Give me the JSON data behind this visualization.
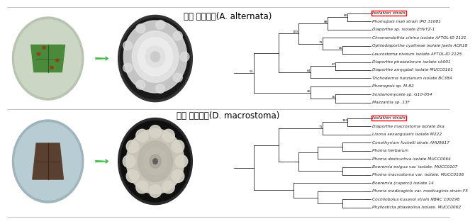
{
  "title1": "수국 잎반점병(A. alternata)",
  "title2": "수국 잎마름병(D. macrostoma)",
  "title1_italic": "A. alternata",
  "title2_italic": "D. macrostoma",
  "isolation_label": "Isolation strain",
  "tree1_taxa": [
    "Isolation strain",
    "Phomopsis mali strain IPO 31081",
    "Diaporthe sp. isolate ZHVYZ-1",
    "Chromendothia citrina isolate AFTOL-ID 2121",
    "Ophiodiaporthe cyatheae isolate Jaefa ACR18",
    "Leucostoma niveum isolate AFTOL-ID 2125",
    "Diaporthe phaseolorum isolate vk001",
    "Diaporthe amygdali isolate MUCC0101",
    "Trichoderma harzianum isolate BC38A",
    "Phomopsis sp. M-82",
    "Sordariomycete sp. G10-054",
    "Mazzantia sp. 13F"
  ],
  "tree2_taxa": [
    "Isolation strain",
    "Diaporthe macrostoma isolate 2ka",
    "Lioona sexangularis isolate M222",
    "Conothyrium fuckelli strain AHU9617",
    "Phoma herbarum",
    "Phoma destructiva isolate MUCC0064",
    "Boeremia exigua var. isolate. MUCC0107",
    "Phoma macrostoma var. isolate. MUCC0106",
    "Boeremia (cuperci) isolate 14",
    "Phoma medicaginis var. medicaginis strain F5",
    "Cochliobolus kusanoi strain NBRC 100198",
    "Phyllosticta phaseolina isolate. MUCC0062"
  ],
  "bg_color": "#ffffff",
  "title_fontsize": 8.5,
  "taxa_fontsize": 4.5,
  "box_color": "#ff0000",
  "border_color": "#aaaaaa",
  "photo1_bg": "#c8d4c8",
  "photo1_plate": "#d8e0d0",
  "colony1_bg": "#1a1a1a",
  "colony1_plate": "#c8c8c8",
  "photo2_bg": "#b8c8d0",
  "photo2_plate": "#c8d4d8",
  "colony2_bg": "#0a0a0a",
  "colony2_plate": "#c0bab0",
  "arrow_color": "#44bb44"
}
